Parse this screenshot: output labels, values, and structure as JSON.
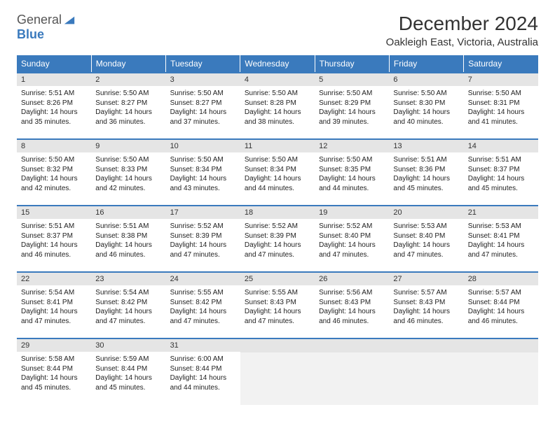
{
  "logo": {
    "general": "General",
    "blue": "Blue"
  },
  "title": "December 2024",
  "location": "Oakleigh East, Victoria, Australia",
  "colors": {
    "header_bg": "#3a7abd",
    "header_text": "#ffffff",
    "day_number_bg": "#e5e5e5",
    "border": "#3a7abd",
    "logo_blue": "#3a7abd",
    "logo_gray": "#555555"
  },
  "day_headers": [
    "Sunday",
    "Monday",
    "Tuesday",
    "Wednesday",
    "Thursday",
    "Friday",
    "Saturday"
  ],
  "weeks": [
    [
      {
        "num": "1",
        "sunrise": "5:51 AM",
        "sunset": "8:26 PM",
        "daylight": "14 hours and 35 minutes."
      },
      {
        "num": "2",
        "sunrise": "5:50 AM",
        "sunset": "8:27 PM",
        "daylight": "14 hours and 36 minutes."
      },
      {
        "num": "3",
        "sunrise": "5:50 AM",
        "sunset": "8:27 PM",
        "daylight": "14 hours and 37 minutes."
      },
      {
        "num": "4",
        "sunrise": "5:50 AM",
        "sunset": "8:28 PM",
        "daylight": "14 hours and 38 minutes."
      },
      {
        "num": "5",
        "sunrise": "5:50 AM",
        "sunset": "8:29 PM",
        "daylight": "14 hours and 39 minutes."
      },
      {
        "num": "6",
        "sunrise": "5:50 AM",
        "sunset": "8:30 PM",
        "daylight": "14 hours and 40 minutes."
      },
      {
        "num": "7",
        "sunrise": "5:50 AM",
        "sunset": "8:31 PM",
        "daylight": "14 hours and 41 minutes."
      }
    ],
    [
      {
        "num": "8",
        "sunrise": "5:50 AM",
        "sunset": "8:32 PM",
        "daylight": "14 hours and 42 minutes."
      },
      {
        "num": "9",
        "sunrise": "5:50 AM",
        "sunset": "8:33 PM",
        "daylight": "14 hours and 42 minutes."
      },
      {
        "num": "10",
        "sunrise": "5:50 AM",
        "sunset": "8:34 PM",
        "daylight": "14 hours and 43 minutes."
      },
      {
        "num": "11",
        "sunrise": "5:50 AM",
        "sunset": "8:34 PM",
        "daylight": "14 hours and 44 minutes."
      },
      {
        "num": "12",
        "sunrise": "5:50 AM",
        "sunset": "8:35 PM",
        "daylight": "14 hours and 44 minutes."
      },
      {
        "num": "13",
        "sunrise": "5:51 AM",
        "sunset": "8:36 PM",
        "daylight": "14 hours and 45 minutes."
      },
      {
        "num": "14",
        "sunrise": "5:51 AM",
        "sunset": "8:37 PM",
        "daylight": "14 hours and 45 minutes."
      }
    ],
    [
      {
        "num": "15",
        "sunrise": "5:51 AM",
        "sunset": "8:37 PM",
        "daylight": "14 hours and 46 minutes."
      },
      {
        "num": "16",
        "sunrise": "5:51 AM",
        "sunset": "8:38 PM",
        "daylight": "14 hours and 46 minutes."
      },
      {
        "num": "17",
        "sunrise": "5:52 AM",
        "sunset": "8:39 PM",
        "daylight": "14 hours and 47 minutes."
      },
      {
        "num": "18",
        "sunrise": "5:52 AM",
        "sunset": "8:39 PM",
        "daylight": "14 hours and 47 minutes."
      },
      {
        "num": "19",
        "sunrise": "5:52 AM",
        "sunset": "8:40 PM",
        "daylight": "14 hours and 47 minutes."
      },
      {
        "num": "20",
        "sunrise": "5:53 AM",
        "sunset": "8:40 PM",
        "daylight": "14 hours and 47 minutes."
      },
      {
        "num": "21",
        "sunrise": "5:53 AM",
        "sunset": "8:41 PM",
        "daylight": "14 hours and 47 minutes."
      }
    ],
    [
      {
        "num": "22",
        "sunrise": "5:54 AM",
        "sunset": "8:41 PM",
        "daylight": "14 hours and 47 minutes."
      },
      {
        "num": "23",
        "sunrise": "5:54 AM",
        "sunset": "8:42 PM",
        "daylight": "14 hours and 47 minutes."
      },
      {
        "num": "24",
        "sunrise": "5:55 AM",
        "sunset": "8:42 PM",
        "daylight": "14 hours and 47 minutes."
      },
      {
        "num": "25",
        "sunrise": "5:55 AM",
        "sunset": "8:43 PM",
        "daylight": "14 hours and 47 minutes."
      },
      {
        "num": "26",
        "sunrise": "5:56 AM",
        "sunset": "8:43 PM",
        "daylight": "14 hours and 46 minutes."
      },
      {
        "num": "27",
        "sunrise": "5:57 AM",
        "sunset": "8:43 PM",
        "daylight": "14 hours and 46 minutes."
      },
      {
        "num": "28",
        "sunrise": "5:57 AM",
        "sunset": "8:44 PM",
        "daylight": "14 hours and 46 minutes."
      }
    ],
    [
      {
        "num": "29",
        "sunrise": "5:58 AM",
        "sunset": "8:44 PM",
        "daylight": "14 hours and 45 minutes."
      },
      {
        "num": "30",
        "sunrise": "5:59 AM",
        "sunset": "8:44 PM",
        "daylight": "14 hours and 45 minutes."
      },
      {
        "num": "31",
        "sunrise": "6:00 AM",
        "sunset": "8:44 PM",
        "daylight": "14 hours and 44 minutes."
      },
      null,
      null,
      null,
      null
    ]
  ],
  "labels": {
    "sunrise": "Sunrise:",
    "sunset": "Sunset:",
    "daylight": "Daylight:"
  }
}
